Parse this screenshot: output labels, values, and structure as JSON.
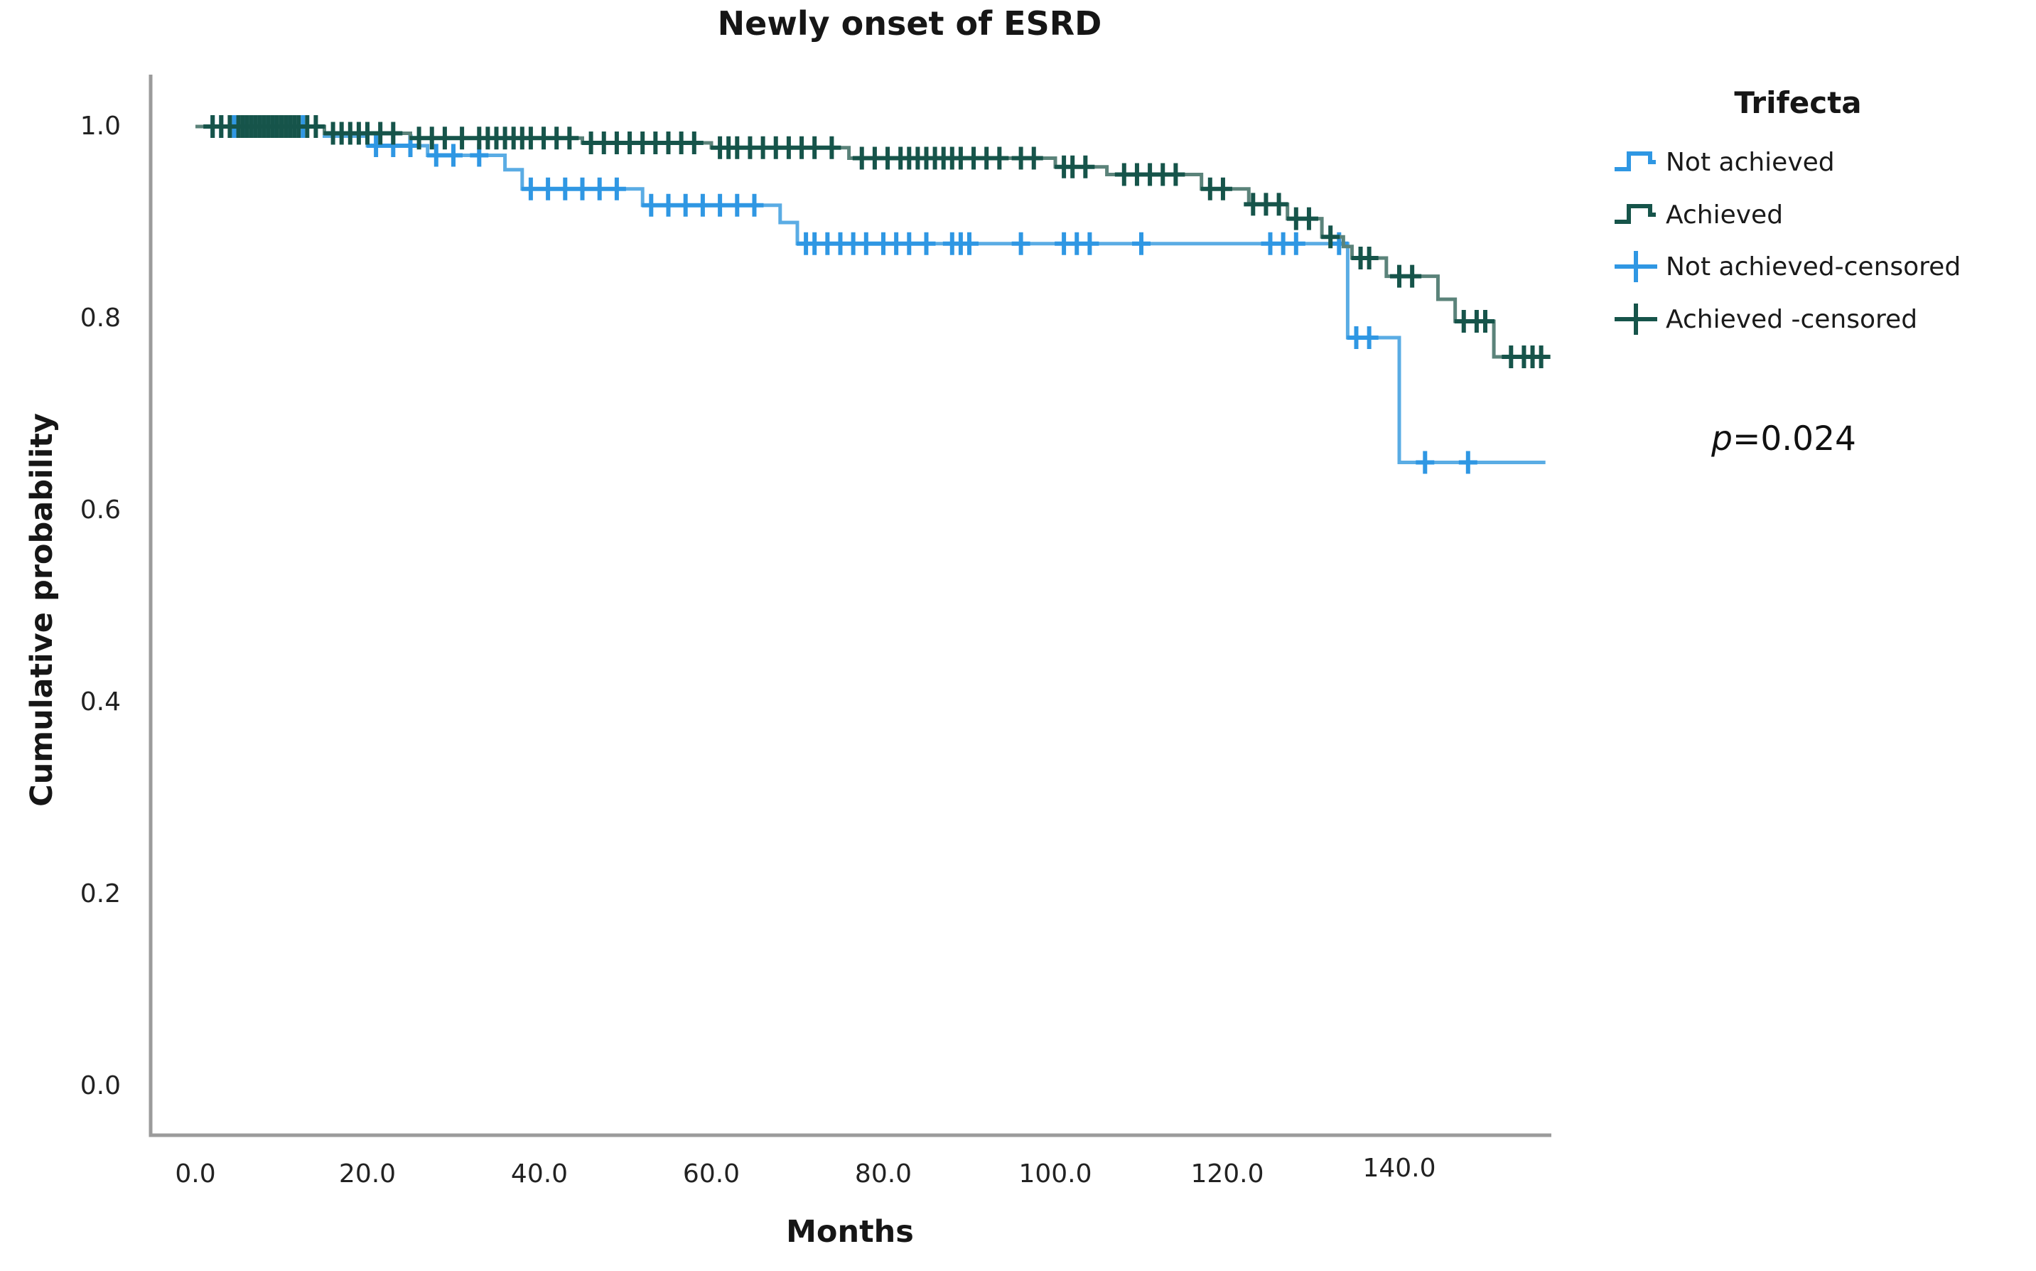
{
  "chart_data": {
    "type": "line",
    "subtype": "kaplan-meier-step",
    "title": "Newly onset of ESRD",
    "xlabel": "Months",
    "ylabel": "Cumulative probability",
    "x_tick_labels": [
      "0.0",
      "20.0",
      "40.0",
      "60.0",
      "80.0",
      "100.0",
      "120.0",
      "140.0"
    ],
    "x_tick_values": [
      0,
      20,
      40,
      60,
      80,
      100,
      120,
      140
    ],
    "y_tick_labels": [
      "1.0",
      "0.8",
      "0.6",
      "0.4",
      "0.2",
      "0.0"
    ],
    "y_tick_values": [
      1.0,
      0.8,
      0.6,
      0.4,
      0.2,
      0.0
    ],
    "xlim": [
      0,
      157
    ],
    "ylim": [
      0,
      1.05
    ],
    "grid": false,
    "legend_position": "right",
    "annotation": {
      "variable": "p",
      "value": "=0.024"
    },
    "series": [
      {
        "name": "Not achieved",
        "line_color": "#5aace4",
        "marker_color": "#2f97e3",
        "steps": [
          [
            0,
            1.0
          ],
          [
            15,
            0.99
          ],
          [
            20,
            0.98
          ],
          [
            27,
            0.97
          ],
          [
            36,
            0.955
          ],
          [
            38,
            0.935
          ],
          [
            52,
            0.918
          ],
          [
            68,
            0.9
          ],
          [
            70,
            0.878
          ],
          [
            134,
            0.78
          ],
          [
            140,
            0.65
          ],
          [
            157,
            0.65
          ]
        ],
        "censored": [
          [
            2,
            1.0
          ],
          [
            3,
            1.0
          ],
          [
            4.5,
            1.0
          ],
          [
            6,
            1.0
          ],
          [
            7,
            1.0
          ],
          [
            8,
            1.0
          ],
          [
            9,
            1.0
          ],
          [
            10,
            1.0
          ],
          [
            11,
            1.0
          ],
          [
            12.5,
            1.0
          ],
          [
            21,
            0.98
          ],
          [
            23,
            0.98
          ],
          [
            25,
            0.98
          ],
          [
            28,
            0.97
          ],
          [
            30,
            0.97
          ],
          [
            33,
            0.97
          ],
          [
            39,
            0.935
          ],
          [
            41,
            0.935
          ],
          [
            43,
            0.935
          ],
          [
            45,
            0.935
          ],
          [
            47,
            0.935
          ],
          [
            49,
            0.935
          ],
          [
            53,
            0.918
          ],
          [
            55,
            0.918
          ],
          [
            57,
            0.918
          ],
          [
            59,
            0.918
          ],
          [
            61,
            0.918
          ],
          [
            63,
            0.918
          ],
          [
            65,
            0.918
          ],
          [
            71,
            0.878
          ],
          [
            72,
            0.878
          ],
          [
            73.5,
            0.878
          ],
          [
            75,
            0.878
          ],
          [
            76.5,
            0.878
          ],
          [
            78,
            0.878
          ],
          [
            80,
            0.878
          ],
          [
            81.5,
            0.878
          ],
          [
            83,
            0.878
          ],
          [
            85,
            0.878
          ],
          [
            88,
            0.878
          ],
          [
            89,
            0.878
          ],
          [
            90,
            0.878
          ],
          [
            96,
            0.878
          ],
          [
            101,
            0.878
          ],
          [
            102.5,
            0.878
          ],
          [
            104,
            0.878
          ],
          [
            110,
            0.878
          ],
          [
            125,
            0.878
          ],
          [
            126.5,
            0.878
          ],
          [
            128,
            0.878
          ],
          [
            133,
            0.878
          ],
          [
            135,
            0.78
          ],
          [
            136.5,
            0.78
          ],
          [
            143,
            0.65
          ],
          [
            148,
            0.65
          ]
        ]
      },
      {
        "name": "Achieved",
        "line_color": "#5b837a",
        "marker_color": "#16544a",
        "steps": [
          [
            0,
            1.0
          ],
          [
            15,
            0.993
          ],
          [
            25,
            0.988
          ],
          [
            45,
            0.983
          ],
          [
            60,
            0.978
          ],
          [
            76,
            0.967
          ],
          [
            100,
            0.958
          ],
          [
            106,
            0.95
          ],
          [
            117,
            0.935
          ],
          [
            122.5,
            0.919
          ],
          [
            127,
            0.904
          ],
          [
            131,
            0.885
          ],
          [
            133.5,
            0.875
          ],
          [
            134.5,
            0.863
          ],
          [
            138.5,
            0.844
          ],
          [
            144.5,
            0.82
          ],
          [
            146.5,
            0.797
          ],
          [
            151,
            0.76
          ],
          [
            157,
            0.76
          ]
        ],
        "censored": [
          [
            2,
            1.0
          ],
          [
            3,
            1.0
          ],
          [
            4,
            1.0
          ],
          [
            5,
            1.0
          ],
          [
            5.5,
            1.0
          ],
          [
            6,
            1.0
          ],
          [
            6.5,
            1.0
          ],
          [
            7,
            1.0
          ],
          [
            7.5,
            1.0
          ],
          [
            8,
            1.0
          ],
          [
            8.5,
            1.0
          ],
          [
            9,
            1.0
          ],
          [
            9.5,
            1.0
          ],
          [
            10,
            1.0
          ],
          [
            10.5,
            1.0
          ],
          [
            11,
            1.0
          ],
          [
            11.5,
            1.0
          ],
          [
            12,
            1.0
          ],
          [
            13,
            1.0
          ],
          [
            14,
            1.0
          ],
          [
            16,
            0.993
          ],
          [
            17,
            0.993
          ],
          [
            18,
            0.993
          ],
          [
            19,
            0.993
          ],
          [
            20,
            0.993
          ],
          [
            21.5,
            0.993
          ],
          [
            23,
            0.993
          ],
          [
            26,
            0.988
          ],
          [
            27.5,
            0.988
          ],
          [
            29,
            0.988
          ],
          [
            31,
            0.988
          ],
          [
            33,
            0.988
          ],
          [
            34,
            0.988
          ],
          [
            35,
            0.988
          ],
          [
            36,
            0.988
          ],
          [
            37,
            0.988
          ],
          [
            38,
            0.988
          ],
          [
            39,
            0.988
          ],
          [
            40.5,
            0.988
          ],
          [
            42,
            0.988
          ],
          [
            43.5,
            0.988
          ],
          [
            46,
            0.983
          ],
          [
            47.5,
            0.983
          ],
          [
            49,
            0.983
          ],
          [
            50.5,
            0.983
          ],
          [
            52,
            0.983
          ],
          [
            53.5,
            0.983
          ],
          [
            55,
            0.983
          ],
          [
            56.5,
            0.983
          ],
          [
            58,
            0.983
          ],
          [
            61,
            0.978
          ],
          [
            62,
            0.978
          ],
          [
            63,
            0.978
          ],
          [
            64.5,
            0.978
          ],
          [
            66,
            0.978
          ],
          [
            67.5,
            0.978
          ],
          [
            69,
            0.978
          ],
          [
            70.5,
            0.978
          ],
          [
            72,
            0.978
          ],
          [
            74,
            0.978
          ],
          [
            77.5,
            0.967
          ],
          [
            79,
            0.967
          ],
          [
            80.5,
            0.967
          ],
          [
            82,
            0.967
          ],
          [
            83,
            0.967
          ],
          [
            84,
            0.967
          ],
          [
            85,
            0.967
          ],
          [
            86,
            0.967
          ],
          [
            87,
            0.967
          ],
          [
            88,
            0.967
          ],
          [
            89,
            0.967
          ],
          [
            90.5,
            0.967
          ],
          [
            92,
            0.967
          ],
          [
            93.5,
            0.967
          ],
          [
            96,
            0.967
          ],
          [
            97.5,
            0.967
          ],
          [
            101,
            0.958
          ],
          [
            102,
            0.958
          ],
          [
            103.5,
            0.958
          ],
          [
            108,
            0.95
          ],
          [
            109.5,
            0.95
          ],
          [
            111,
            0.95
          ],
          [
            112.5,
            0.95
          ],
          [
            114,
            0.95
          ],
          [
            118,
            0.935
          ],
          [
            119.5,
            0.935
          ],
          [
            123,
            0.919
          ],
          [
            124.5,
            0.919
          ],
          [
            126,
            0.919
          ],
          [
            128,
            0.904
          ],
          [
            129.5,
            0.904
          ],
          [
            132,
            0.885
          ],
          [
            135.5,
            0.863
          ],
          [
            136.5,
            0.863
          ],
          [
            140,
            0.844
          ],
          [
            141.5,
            0.844
          ],
          [
            147.5,
            0.797
          ],
          [
            149,
            0.797
          ],
          [
            150,
            0.797
          ],
          [
            153,
            0.76
          ],
          [
            154.5,
            0.76
          ],
          [
            155.5,
            0.76
          ],
          [
            156.5,
            0.76
          ]
        ]
      }
    ],
    "legend": {
      "title": "Trifecta",
      "items": [
        {
          "label": "Not achieved",
          "series": 0,
          "glyph": "step"
        },
        {
          "label": "Achieved",
          "series": 1,
          "glyph": "step"
        },
        {
          "label": "Not achieved-censored",
          "series": 0,
          "glyph": "plus"
        },
        {
          "label": "Achieved -censored",
          "series": 1,
          "glyph": "plus"
        }
      ]
    },
    "axis_color": "#9b9b9b"
  }
}
